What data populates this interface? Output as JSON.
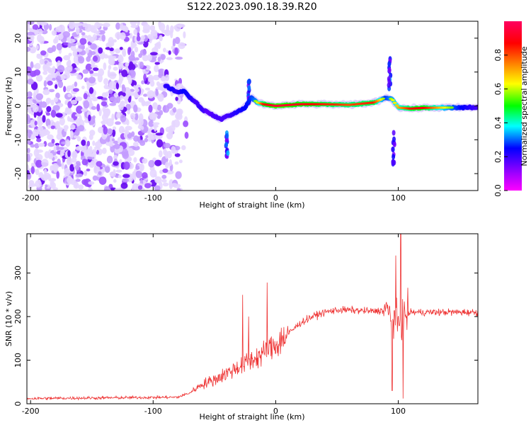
{
  "figure_title": "S122.2023.090.18.39.R20",
  "chart_data": [
    {
      "type": "heatmap",
      "title": "S122.2023.090.18.39.R20",
      "xlabel": "Height of straight line (km)",
      "ylabel": "Frequency (Hz)",
      "xlim": [
        -203,
        165
      ],
      "ylim": [
        -25,
        25
      ],
      "xticks": [
        -200,
        -100,
        0,
        100
      ],
      "yticks": [
        -20,
        -10,
        0,
        10,
        20
      ],
      "colorbar": {
        "label": "Normalized spectral amplitude",
        "range": [
          0,
          1
        ],
        "ticks": [
          "0.0",
          "0.2",
          "0.4",
          "0.6",
          "0.8"
        ],
        "colors": [
          "#ff00ff",
          "#6a00ff",
          "#0000ff",
          "#00ffff",
          "#00ff00",
          "#ffff00",
          "#ff8000",
          "#ff0000",
          "#ff0060"
        ]
      },
      "noise_region_x": [
        -203,
        -82
      ],
      "ridge": {
        "x": [
          -90,
          -85,
          -80,
          -75,
          -70,
          -65,
          -60,
          -55,
          -50,
          -45,
          -40,
          -35,
          -30,
          -25,
          -20,
          -15,
          -10,
          0,
          20,
          40,
          60,
          80,
          90,
          95,
          100,
          110,
          120,
          140,
          165
        ],
        "freq": [
          6,
          5,
          4,
          4.5,
          2.5,
          1,
          -1,
          -2,
          -3,
          -4,
          -3,
          -2.5,
          -1.5,
          -0.5,
          2.5,
          1,
          0.5,
          0,
          0.5,
          0.5,
          0.3,
          1,
          2.5,
          2,
          -0.5,
          -0.8,
          -0.6,
          -0.5,
          -0.5
        ],
        "amplitude": [
          0.35,
          0.4,
          0.35,
          0.45,
          0.4,
          0.3,
          0.35,
          0.25,
          0.3,
          0.3,
          0.3,
          0.35,
          0.4,
          0.45,
          0.5,
          0.6,
          0.85,
          0.95,
          0.9,
          0.85,
          0.8,
          0.85,
          0.5,
          0.6,
          0.7,
          0.85,
          0.9,
          0.6,
          0.3
        ]
      },
      "side_lobes": [
        {
          "x": -22,
          "freq_range": [
            0,
            8
          ]
        },
        {
          "x": -40,
          "freq_range": [
            -15,
            -8
          ]
        },
        {
          "x": 93,
          "freq_range": [
            5,
            14
          ]
        },
        {
          "x": 96,
          "freq_range": [
            -18,
            -6
          ]
        }
      ]
    },
    {
      "type": "line",
      "xlabel": "Height of straight line (km)",
      "ylabel": "SNR (10 * v/v)",
      "xlim": [
        -203,
        165
      ],
      "ylim": [
        0,
        390
      ],
      "xticks": [
        -200,
        -100,
        0,
        100
      ],
      "yticks": [
        0,
        100,
        200,
        300
      ],
      "color": "#ee3333",
      "trend": {
        "x": [
          -203,
          -80,
          -70,
          -60,
          -50,
          -40,
          -30,
          -20,
          -10,
          0,
          10,
          20,
          30,
          40,
          50,
          60,
          80,
          90,
          95,
          100,
          105,
          110,
          120,
          140,
          165
        ],
        "snr": [
          12,
          15,
          25,
          45,
          55,
          70,
          85,
          100,
          115,
          135,
          160,
          185,
          200,
          210,
          215,
          215,
          212,
          215,
          200,
          180,
          200,
          210,
          210,
          210,
          210
        ]
      },
      "spikes": [
        {
          "x": -27,
          "snr": 250
        },
        {
          "x": -22,
          "snr": 200
        },
        {
          "x": -7,
          "snr": 278
        },
        {
          "x": 95,
          "snr": 370
        },
        {
          "x": 98,
          "snr": 340
        },
        {
          "x": 102,
          "snr": 390
        },
        {
          "x": 104,
          "snr": 300
        }
      ],
      "dips": [
        {
          "x": 95,
          "snr": 30
        },
        {
          "x": 104,
          "snr": 12
        }
      ]
    }
  ]
}
